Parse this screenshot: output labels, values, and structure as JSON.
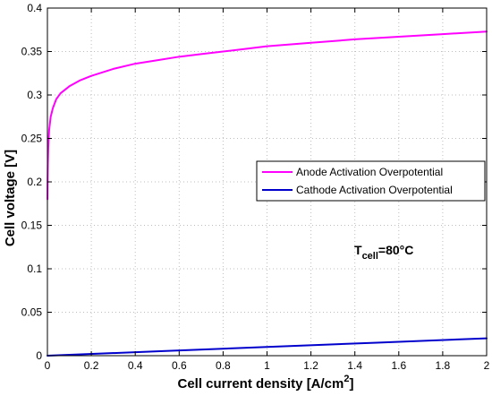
{
  "chart_data": {
    "type": "line",
    "xlabel": "Cell current density [A/cm",
    "xlabel_sup": "2",
    "xlabel_tail": "]",
    "ylabel": "Cell voltage [V]",
    "xlim": [
      0,
      2
    ],
    "ylim": [
      0,
      0.4
    ],
    "x_ticks": [
      "0",
      "0.2",
      "0.4",
      "0.6",
      "0.8",
      "1",
      "1.2",
      "1.4",
      "1.6",
      "1.8",
      "2"
    ],
    "y_ticks": [
      "0",
      "0.05",
      "0.1",
      "0.15",
      "0.2",
      "0.25",
      "0.3",
      "0.35",
      "0.4"
    ],
    "grid": true,
    "legend_placement": "center-right",
    "series": [
      {
        "name": "Anode Activation Overpotential",
        "color": "#ff00ff",
        "x": [
          0.0005,
          0.001,
          0.002,
          0.004,
          0.008,
          0.015,
          0.025,
          0.04,
          0.06,
          0.08,
          0.1,
          0.15,
          0.2,
          0.3,
          0.4,
          0.5,
          0.6,
          0.7,
          0.8,
          0.9,
          1.0,
          1.2,
          1.4,
          1.6,
          1.8,
          2.0
        ],
        "y": [
          0.18,
          0.2,
          0.22,
          0.24,
          0.26,
          0.275,
          0.285,
          0.295,
          0.302,
          0.306,
          0.31,
          0.317,
          0.322,
          0.33,
          0.336,
          0.34,
          0.344,
          0.347,
          0.35,
          0.353,
          0.356,
          0.36,
          0.364,
          0.367,
          0.37,
          0.373
        ]
      },
      {
        "name": "Cathode Activation Overpotential",
        "color": "#0000cc",
        "x": [
          0,
          0.5,
          1.0,
          1.5,
          2.0
        ],
        "y": [
          0,
          0.005,
          0.01,
          0.015,
          0.02
        ]
      }
    ],
    "annotation": {
      "main": "T",
      "sub": "cell",
      "tail": "=80°C"
    }
  }
}
